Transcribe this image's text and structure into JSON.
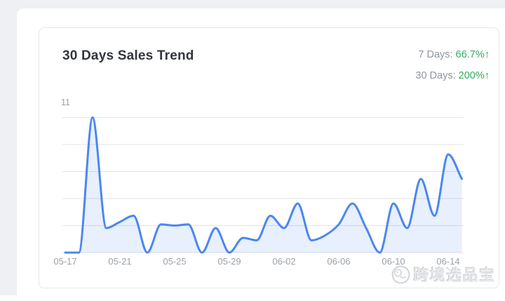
{
  "page": {
    "background_color": "#eef0f3"
  },
  "card": {
    "title": "30 Days Sales Trend",
    "stats": [
      {
        "label": "7 Days:",
        "value": "66.7%",
        "arrow": "↑"
      },
      {
        "label": "30 Days:",
        "value": "200%",
        "arrow": "↑"
      }
    ],
    "positive_color": "#34ab63"
  },
  "watermark": {
    "icon": "brand-mascot-icon",
    "text": "跨境选品宝"
  },
  "chart_data": {
    "type": "area",
    "title": "30 Days Sales Trend",
    "x": [
      "05-17",
      "05-18",
      "05-19",
      "05-20",
      "05-21",
      "05-22",
      "05-23",
      "05-24",
      "05-25",
      "05-26",
      "05-27",
      "05-28",
      "05-29",
      "05-30",
      "05-31",
      "06-01",
      "06-02",
      "06-03",
      "06-04",
      "06-05",
      "06-06",
      "06-07",
      "06-08",
      "06-09",
      "06-10",
      "06-11",
      "06-12",
      "06-13",
      "06-14",
      "06-15"
    ],
    "values": [
      0,
      0,
      11,
      2,
      2.5,
      3,
      0,
      2.3,
      2.2,
      2.3,
      0,
      2,
      0,
      1.2,
      1,
      3,
      2,
      4,
      1,
      1.4,
      2.3,
      4,
      2,
      0,
      4,
      2,
      6,
      3,
      8,
      6
    ],
    "x_tick_labels": [
      "05-17",
      "05-21",
      "05-25",
      "05-29",
      "06-02",
      "06-06",
      "06-10",
      "06-14"
    ],
    "y_max_label": "11",
    "ylim": [
      0,
      11
    ],
    "gridline_values": [
      0,
      2.2,
      4.4,
      6.6,
      8.8,
      11
    ],
    "grid": true,
    "legend": "none",
    "smooth": true,
    "line_color": "#4b87f0",
    "fill_color": "rgba(75,135,240,0.13)",
    "axis_label_color": "#9ba1a9",
    "gridline_color": "#e2e4e7"
  }
}
